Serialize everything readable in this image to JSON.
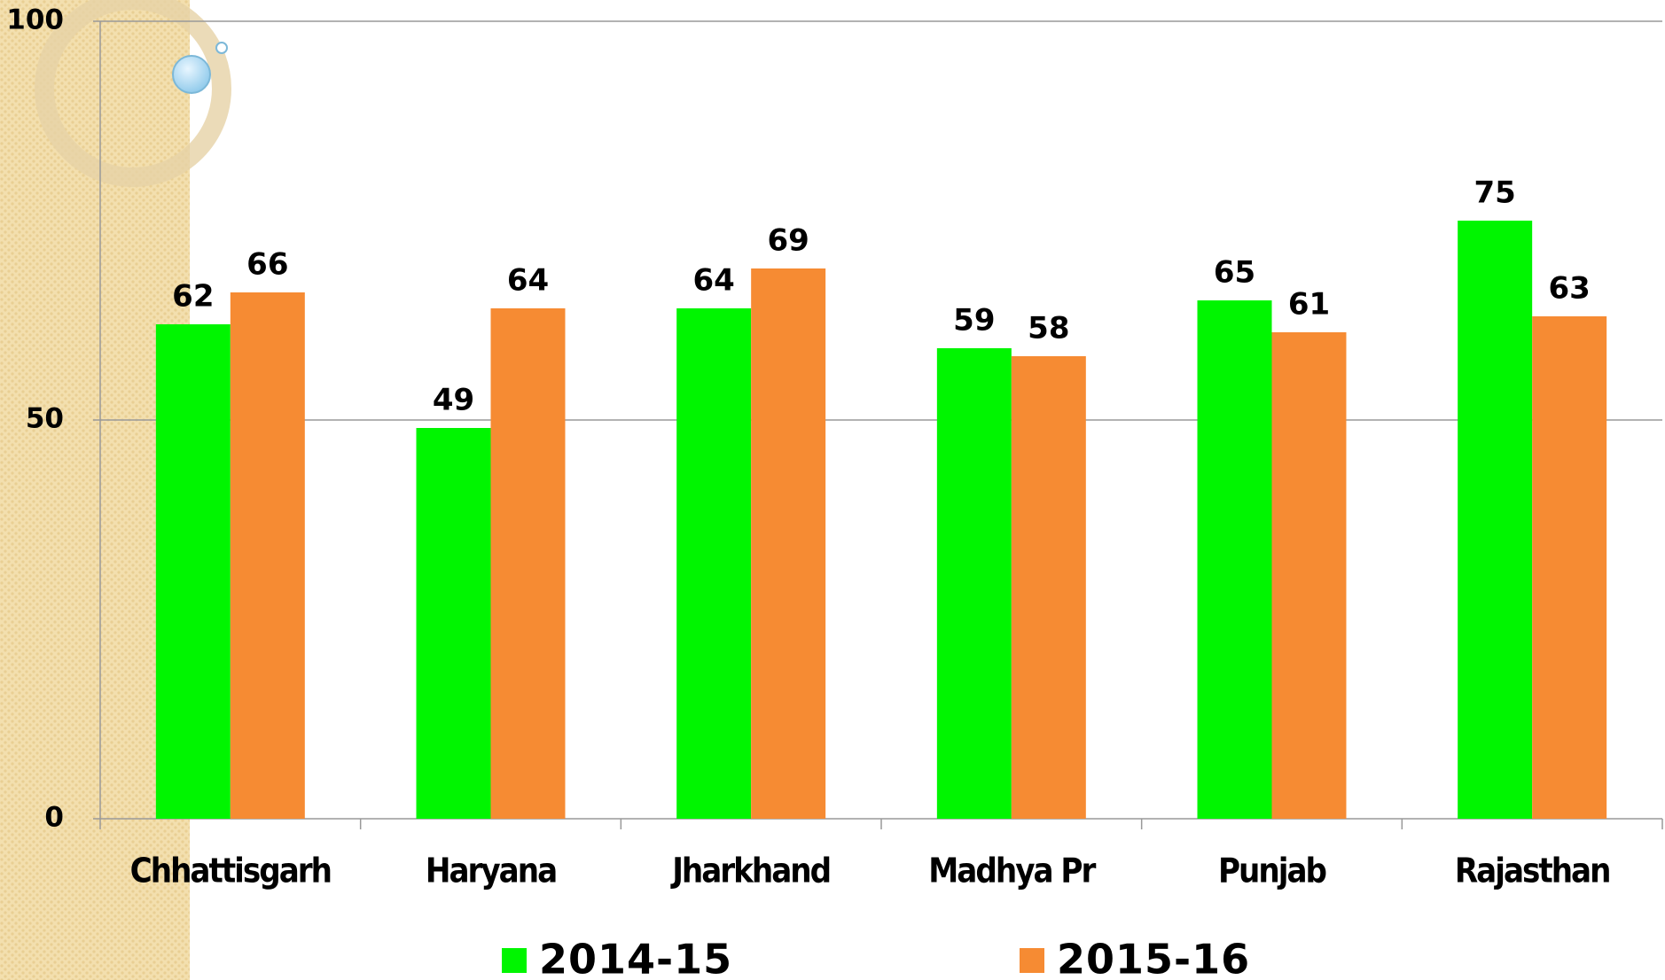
{
  "chart_data": {
    "type": "bar",
    "categories": [
      "Chhattisgarh",
      "Haryana",
      "Jharkhand",
      "Madhya Pr",
      "Punjab",
      "Rajasthan"
    ],
    "series": [
      {
        "name": "2014-15",
        "color": "#00f500",
        "values": [
          62,
          49,
          64,
          59,
          65,
          75
        ]
      },
      {
        "name": "2015-16",
        "color": "#f68b33",
        "values": [
          66,
          64,
          69,
          58,
          61,
          63
        ]
      }
    ],
    "ylim": [
      0,
      100
    ],
    "yticks": [
      0,
      50,
      100
    ],
    "grid": true,
    "legend": "bottom"
  }
}
